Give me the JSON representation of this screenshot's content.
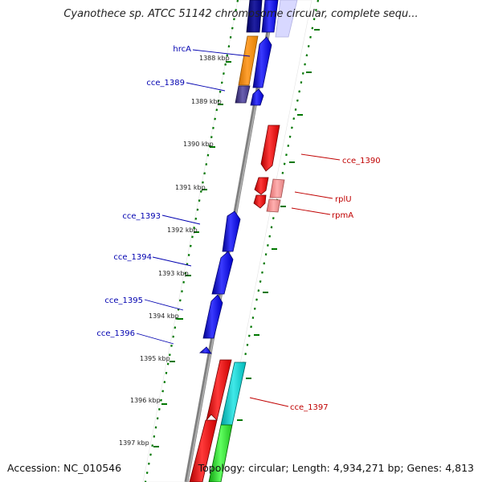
{
  "title": "Cyanothece sp. ATCC 51142 chromosome circular, complete sequ...",
  "footer": {
    "accession": "Accession: NC_010546",
    "summary": "Topology: circular; Length: 4,934,271 bp; Genes: 4,813"
  },
  "colors": {
    "plus_strand_label": "#c00000",
    "minus_strand_label": "#0000b0",
    "tick": "#007700",
    "backbone": "#808080"
  },
  "axis": {
    "unit": "kbp",
    "labels": [
      "1388 kbp",
      "1389 kbp",
      "1390 kbp",
      "1391 kbp",
      "1392 kbp",
      "1393 kbp",
      "1394 kbp",
      "1395 kbp",
      "1396 kbp",
      "1397 kbp"
    ]
  },
  "gene_labels": [
    {
      "name": "hrcA",
      "strand": "minus"
    },
    {
      "name": "cce_1389",
      "strand": "minus"
    },
    {
      "name": "cce_1390",
      "strand": "plus"
    },
    {
      "name": "rplU",
      "strand": "plus"
    },
    {
      "name": "rpmA",
      "strand": "plus"
    },
    {
      "name": "cce_1393",
      "strand": "minus"
    },
    {
      "name": "cce_1394",
      "strand": "minus"
    },
    {
      "name": "cce_1395",
      "strand": "minus"
    },
    {
      "name": "cce_1396",
      "strand": "minus"
    },
    {
      "name": "cce_1397",
      "strand": "plus"
    }
  ]
}
